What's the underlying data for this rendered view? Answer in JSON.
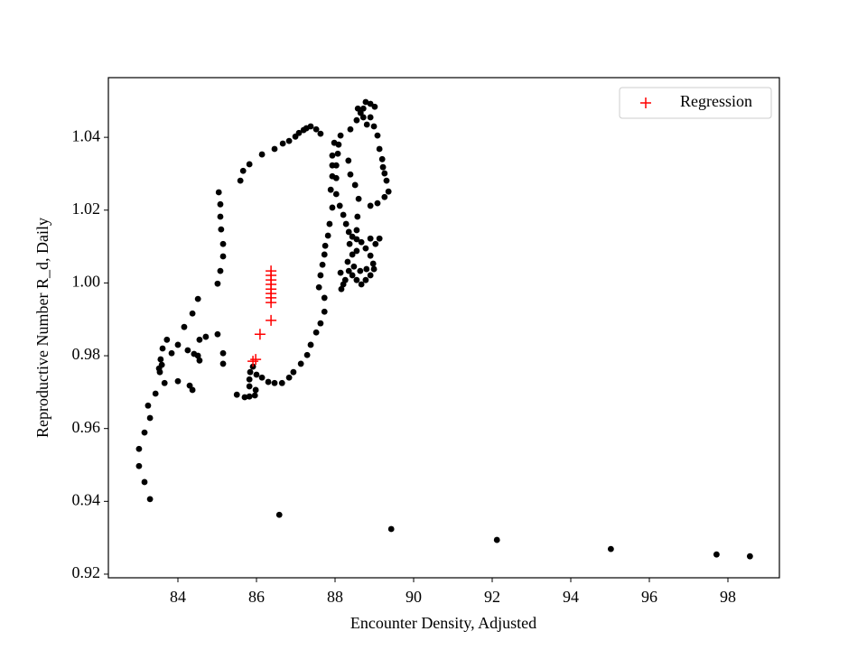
{
  "chart_data": {
    "type": "scatter",
    "x_label": "Encounter Density, Adjusted",
    "y_label": "Reproductive Number R_d, Daily",
    "xlim": [
      82.23,
      99.31
    ],
    "ylim": [
      0.919,
      1.0564
    ],
    "xticks": [
      84,
      86,
      88,
      90,
      92,
      94,
      96,
      98
    ],
    "yticks": [
      0.92,
      0.94,
      0.96,
      0.98,
      {
        "value": 1,
        "label": "1.00"
      },
      1.02,
      1.04
    ],
    "grid": false,
    "legend": "upper right",
    "series": [
      {
        "color": "#000000",
        "marker": "o",
        "x": [
          83.29,
          83.15,
          83.01,
          83.01,
          83.15,
          83.24,
          83.29,
          83.43,
          83.54,
          83.66,
          83.52,
          83.56,
          83.61,
          83.59,
          83.72,
          83.84,
          84.0,
          84.0,
          84.16,
          84.3,
          84.37,
          84.25,
          84.41,
          84.51,
          84.55,
          84.55,
          84.37,
          84.51,
          84.71,
          85.01,
          85.15,
          85.15,
          85.01,
          85.08,
          85.15,
          85.15,
          85.1,
          85.08,
          85.08,
          85.04,
          85.59,
          85.66,
          85.82,
          86.14,
          86.46,
          86.67,
          86.83,
          86.99,
          87.08,
          87.2,
          87.27,
          87.38,
          87.52,
          87.63,
          85.5,
          85.7,
          85.82,
          85.96,
          85.98,
          85.82,
          85.82,
          85.84,
          85.91,
          86.0,
          86.14,
          86.3,
          86.46,
          86.65,
          86.83,
          86.94,
          87.13,
          87.29,
          87.38,
          87.52,
          87.63,
          87.73,
          87.73,
          87.59,
          87.63,
          87.68,
          87.73,
          87.75,
          87.82,
          87.86,
          87.93,
          87.89,
          87.93,
          87.93,
          87.93,
          87.98,
          88.14,
          88.09,
          88.07,
          88.03,
          88.03,
          88.03,
          88.12,
          88.21,
          88.28,
          88.35,
          88.44,
          88.55,
          88.67,
          88.78,
          88.9,
          88.97,
          88.99,
          88.9,
          88.78,
          88.67,
          88.55,
          88.44,
          88.35,
          88.21,
          88.16,
          88.26,
          88.14,
          88.32,
          88.44,
          88.55,
          88.9,
          89.03,
          89.13,
          88.8,
          88.64,
          88.48,
          88.37,
          88.55,
          88.57,
          88.6,
          88.51,
          88.39,
          88.34,
          88.9,
          89.08,
          89.26,
          89.36,
          89.31,
          89.26,
          89.22,
          89.2,
          89.13,
          89.08,
          88.99,
          88.9,
          88.72,
          88.58,
          88.78,
          88.9,
          89.01,
          88.65,
          88.72,
          88.81,
          88.55,
          88.39,
          86.58,
          89.43,
          92.12,
          95.02,
          97.71,
          98.56
        ],
        "values": [
          0.9406,
          0.9453,
          0.9497,
          0.9544,
          0.9589,
          0.9663,
          0.9629,
          0.9696,
          0.9755,
          0.9725,
          0.9765,
          0.979,
          0.982,
          0.9775,
          0.9844,
          0.9807,
          0.983,
          0.973,
          0.9879,
          0.9718,
          0.9706,
          0.9815,
          0.9805,
          0.98,
          0.9787,
          0.9844,
          0.9916,
          0.9956,
          0.9852,
          0.9859,
          0.9807,
          0.9778,
          0.9998,
          1.0033,
          1.0073,
          1.0107,
          1.0147,
          1.0182,
          1.0216,
          1.0249,
          1.0281,
          1.0308,
          1.0326,
          1.0353,
          1.0368,
          1.0383,
          1.039,
          1.0402,
          1.0412,
          1.042,
          1.0425,
          1.043,
          1.0422,
          1.041,
          0.9693,
          0.9686,
          0.9688,
          0.9691,
          0.9706,
          0.9716,
          0.9735,
          0.9755,
          0.977,
          0.9748,
          0.974,
          0.9728,
          0.9725,
          0.9725,
          0.974,
          0.9755,
          0.9778,
          0.9802,
          0.983,
          0.9864,
          0.9889,
          0.9921,
          0.9959,
          0.9988,
          1.0021,
          1.005,
          1.0078,
          1.0102,
          1.013,
          1.0162,
          1.0207,
          1.0256,
          1.0293,
          1.0323,
          1.035,
          1.0385,
          1.0405,
          1.038,
          1.0355,
          1.0323,
          1.0288,
          1.0244,
          1.0212,
          1.0187,
          1.0162,
          1.014,
          1.0127,
          1.012,
          1.0112,
          1.0095,
          1.0075,
          1.0053,
          1.0038,
          1.0021,
          1.0008,
          0.9996,
          1.0008,
          1.0021,
          1.0033,
          0.9996,
          0.9983,
          1.0008,
          1.0028,
          1.0058,
          1.0078,
          1.0088,
          1.0122,
          1.0107,
          1.0122,
          1.0038,
          1.0033,
          1.0045,
          1.0107,
          1.0145,
          1.0182,
          1.0231,
          1.0269,
          1.0298,
          1.0336,
          1.0212,
          1.0219,
          1.0236,
          1.0251,
          1.0281,
          1.0301,
          1.0318,
          1.034,
          1.0368,
          1.0405,
          1.043,
          1.0455,
          1.0479,
          1.0479,
          1.0497,
          1.0492,
          1.0484,
          1.0467,
          1.0455,
          1.0435,
          1.0447,
          1.0422,
          0.9363,
          0.9324,
          0.9294,
          0.9269,
          0.9254,
          0.9249
        ]
      },
      {
        "name": "Regression",
        "color": "#ff0000",
        "marker": "+",
        "x": [
          86.37,
          86.37,
          86.37,
          86.37,
          86.37,
          86.37,
          86.37,
          86.37,
          86.37,
          86.09,
          85.98,
          85.91
        ],
        "values": [
          1.0033,
          1.0021,
          1.0008,
          0.9996,
          0.9983,
          0.9971,
          0.9959,
          0.9946,
          0.9897,
          0.9859,
          0.979,
          0.9785
        ]
      }
    ]
  }
}
